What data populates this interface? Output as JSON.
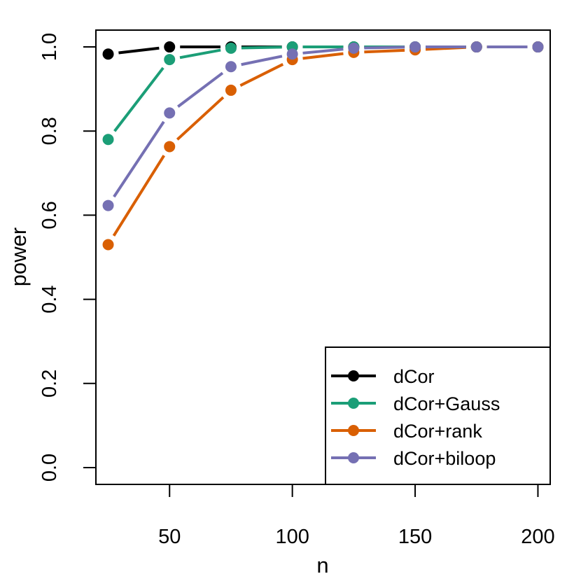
{
  "chart_data": {
    "type": "line",
    "title": "",
    "xlabel": "n",
    "ylabel": "power",
    "xlim": [
      20,
      205
    ],
    "ylim": [
      -0.04,
      1.04
    ],
    "xticks": [
      50,
      100,
      150,
      200
    ],
    "xtick_labels": [
      "50",
      "100",
      "150",
      "200"
    ],
    "yticks": [
      0.0,
      0.2,
      0.4,
      0.6,
      0.8,
      1.0
    ],
    "ytick_labels": [
      "0.0",
      "0.2",
      "0.4",
      "0.6",
      "0.8",
      "1.0"
    ],
    "x": [
      25,
      50,
      75,
      100,
      125,
      150,
      175,
      200
    ],
    "legend_position": "bottom-right",
    "series": [
      {
        "name": "dCor",
        "color": "#000000",
        "values": [
          0.983,
          1.0,
          1.0,
          1.0,
          1.0,
          1.0,
          1.0,
          1.0
        ]
      },
      {
        "name": "dCor+Gauss",
        "color": "#1b9e77",
        "values": [
          0.78,
          0.97,
          0.997,
          1.0,
          1.0,
          1.0,
          1.0,
          1.0
        ]
      },
      {
        "name": "dCor+rank",
        "color": "#d95f02",
        "values": [
          0.53,
          0.763,
          0.897,
          0.97,
          0.987,
          0.993,
          1.0,
          1.0
        ]
      },
      {
        "name": "dCor+biloop",
        "color": "#7570b3",
        "values": [
          0.623,
          0.843,
          0.953,
          0.983,
          0.997,
          1.0,
          1.0,
          1.0
        ]
      }
    ]
  }
}
